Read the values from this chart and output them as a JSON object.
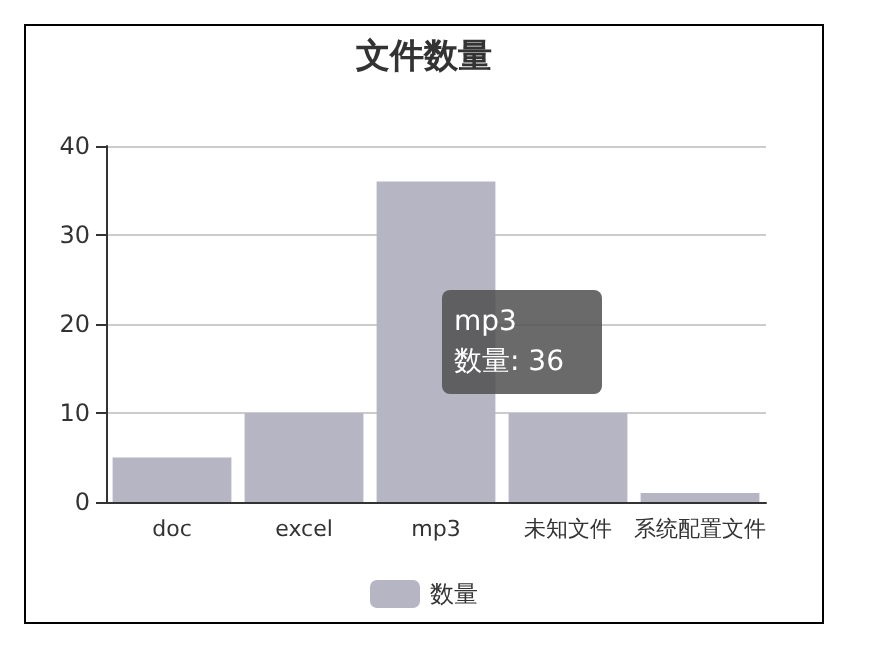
{
  "chart_data": {
    "type": "bar",
    "title": "文件数量",
    "categories": [
      "doc",
      "excel",
      "mp3",
      "未知文件",
      "系统配置文件"
    ],
    "series": [
      {
        "name": "数量",
        "color": "#b6b5c4",
        "values": [
          5,
          10,
          36,
          10,
          1
        ]
      }
    ],
    "ylim": [
      0,
      40
    ],
    "yticks": [
      0,
      10,
      20,
      30,
      40
    ],
    "grid": "y",
    "legend": "bottom",
    "annotations": [
      "mp3\n数量: 36"
    ]
  }
}
